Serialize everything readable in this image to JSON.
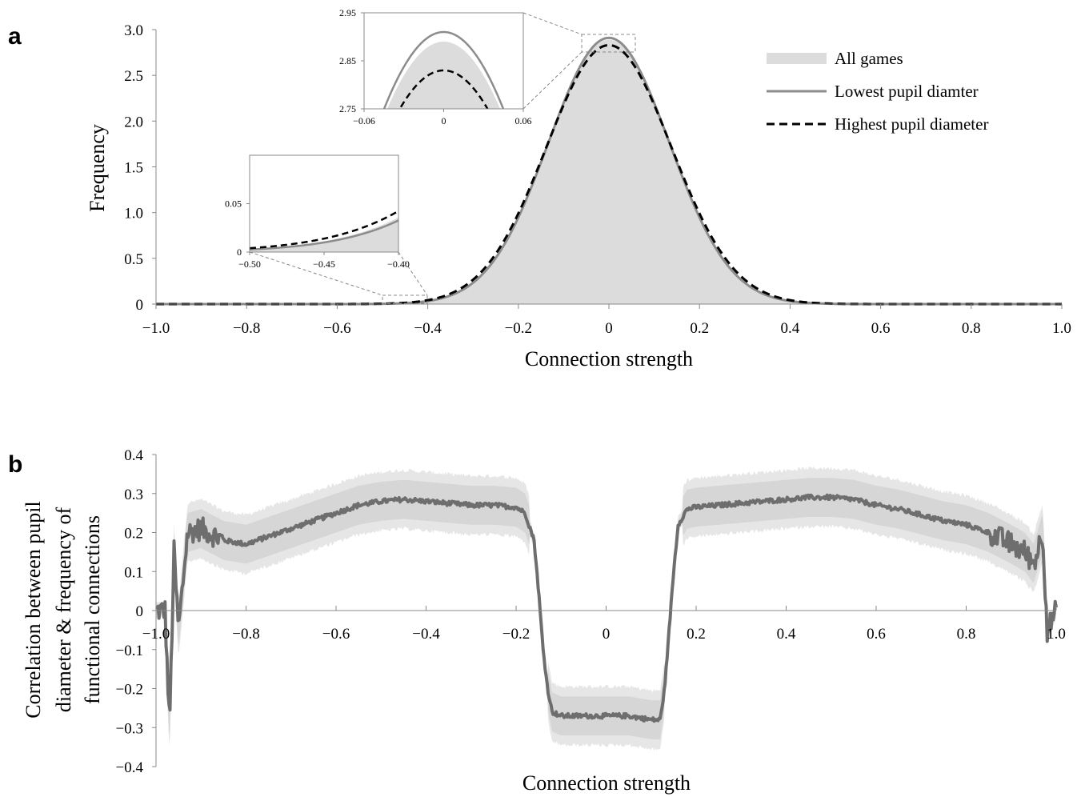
{
  "panel_a": {
    "label": "a",
    "xlabel": "Connection strength",
    "ylabel": "Frequency",
    "xticks": [
      "−1.0",
      "−0.8",
      "−0.6",
      "−0.4",
      "−0.2",
      "0",
      "0.2",
      "0.4",
      "0.6",
      "0.8",
      "1.0"
    ],
    "yticks": [
      "0",
      "0.5",
      "1.0",
      "1.5",
      "2.0",
      "2.5",
      "3.0"
    ],
    "legend": {
      "all_games": "All games",
      "lowest": "Lowest pupil diamter",
      "highest": "Highest pupil diameter"
    },
    "inset_top": {
      "xticks": [
        "−0.06",
        "0",
        "0.06"
      ],
      "yticks": [
        "2.75",
        "2.85",
        "2.95"
      ]
    },
    "inset_left": {
      "xticks": [
        "−0.50",
        "−0.45",
        "−0.40"
      ],
      "yticks": [
        "0",
        "0.05"
      ]
    }
  },
  "panel_b": {
    "label": "b",
    "xlabel": "Connection strength",
    "ylabel_line1": "Correlation between pupil",
    "ylabel_line2": "diameter & frequency of",
    "ylabel_line3": "functional connections",
    "xticks": [
      "−1.0",
      "−0.8",
      "−0.6",
      "−0.4",
      "−0.2",
      "0",
      "0.2",
      "0.4",
      "0.6",
      "0.8",
      "1.0"
    ],
    "yticks": [
      "−0.4",
      "−0.3",
      "−0.2",
      "−0.1",
      "0",
      "0.1",
      "0.2",
      "0.3",
      "0.4"
    ]
  },
  "chart_data": [
    {
      "type": "area",
      "xlabel": "Connection strength",
      "ylabel": "Frequency",
      "xlim": [
        -1.0,
        1.0
      ],
      "ylim": [
        0,
        3.0
      ],
      "legend_position": "top-right",
      "series": [
        {
          "name": "All games",
          "style": "filled area",
          "color": "#dcdcdc",
          "distribution": "gaussian",
          "mean": 0.0,
          "sd": 0.135,
          "peak": 2.89
        },
        {
          "name": "Lowest pupil diamter",
          "style": "solid line",
          "color": "#8c8c8c",
          "distribution": "gaussian",
          "mean": 0.0,
          "sd": 0.1335,
          "peak": 2.91
        },
        {
          "name": "Highest pupil diameter",
          "style": "dashed line",
          "color": "#000000",
          "distribution": "gaussian",
          "mean": 0.0,
          "sd": 0.138,
          "peak": 2.83
        }
      ],
      "insets": [
        {
          "xlim": [
            -0.06,
            0.06
          ],
          "ylim": [
            2.75,
            2.95
          ]
        },
        {
          "xlim": [
            -0.5,
            -0.4
          ],
          "ylim": [
            0,
            0.1
          ]
        }
      ]
    },
    {
      "type": "line",
      "xlabel": "Connection strength",
      "ylabel": "Correlation between pupil diameter & frequency of functional connections",
      "xlim": [
        -1.0,
        1.0
      ],
      "ylim": [
        -0.4,
        0.4
      ],
      "series": [
        {
          "name": "",
          "color": "#6e6e6e",
          "x": [
            -1.0,
            -0.98,
            -0.97,
            -0.96,
            -0.95,
            -0.93,
            -0.9,
            -0.85,
            -0.8,
            -0.75,
            -0.7,
            -0.65,
            -0.6,
            -0.55,
            -0.5,
            -0.45,
            -0.4,
            -0.35,
            -0.3,
            -0.25,
            -0.2,
            -0.18,
            -0.16,
            -0.15,
            -0.14,
            -0.13,
            -0.12,
            -0.1,
            -0.05,
            0.0,
            0.05,
            0.1,
            0.12,
            0.13,
            0.14,
            0.15,
            0.16,
            0.18,
            0.2,
            0.25,
            0.3,
            0.35,
            0.4,
            0.45,
            0.5,
            0.55,
            0.6,
            0.65,
            0.7,
            0.75,
            0.8,
            0.85,
            0.9,
            0.93,
            0.95,
            0.97,
            0.98,
            1.0
          ],
          "y": [
            0.0,
            0.0,
            -0.3,
            0.15,
            -0.05,
            0.2,
            0.21,
            0.18,
            0.17,
            0.19,
            0.21,
            0.23,
            0.25,
            0.27,
            0.28,
            0.285,
            0.28,
            0.275,
            0.27,
            0.27,
            0.265,
            0.25,
            0.18,
            0.05,
            -0.1,
            -0.2,
            -0.26,
            -0.27,
            -0.27,
            -0.27,
            -0.27,
            -0.28,
            -0.28,
            -0.2,
            -0.05,
            0.1,
            0.22,
            0.26,
            0.265,
            0.27,
            0.275,
            0.28,
            0.285,
            0.29,
            0.29,
            0.285,
            0.27,
            0.26,
            0.245,
            0.23,
            0.22,
            0.2,
            0.17,
            0.15,
            0.12,
            0.2,
            -0.05,
            0.0
          ]
        },
        {
          "name": "",
          "style": "shaded band",
          "color": "#dcdcdc",
          "band_halfwidth_outer": 0.07,
          "band_halfwidth_inner": 0.05
        }
      ]
    }
  ]
}
